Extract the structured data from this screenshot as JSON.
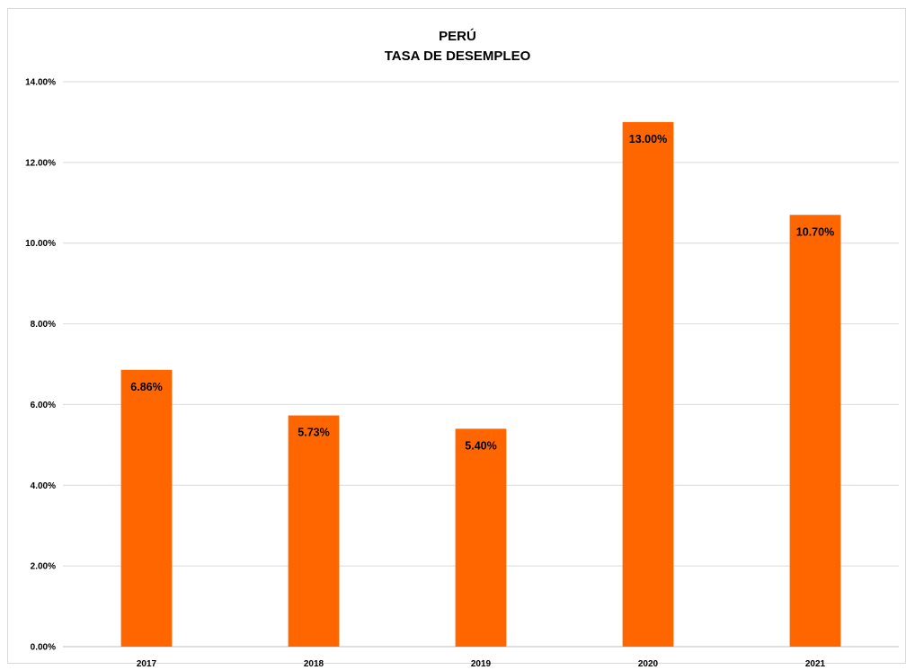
{
  "chart_data": {
    "type": "bar",
    "title": "PERÚ",
    "subtitle": "TASA DE DESEMPLEO",
    "xlabel": "",
    "ylabel": "",
    "categories": [
      "2017",
      "2018",
      "2019",
      "2020",
      "2021"
    ],
    "values": [
      6.86,
      5.73,
      5.4,
      13.0,
      10.7
    ],
    "value_labels": [
      "6.86%",
      "5.73%",
      "5.40%",
      "13.00%",
      "10.70%"
    ],
    "ylim": [
      0,
      14
    ],
    "y_ticks": [
      0,
      2,
      4,
      6,
      8,
      10,
      12,
      14
    ],
    "y_tick_labels": [
      "0.00%",
      "2.00%",
      "4.00%",
      "6.00%",
      "8.00%",
      "10.00%",
      "12.00%",
      "14.00%"
    ],
    "grid": true,
    "legend": "none",
    "colors": {
      "bar": "#FF6600",
      "grid": "#d9d9d9",
      "axis": "#bfbfbf",
      "text": "#000000"
    }
  }
}
